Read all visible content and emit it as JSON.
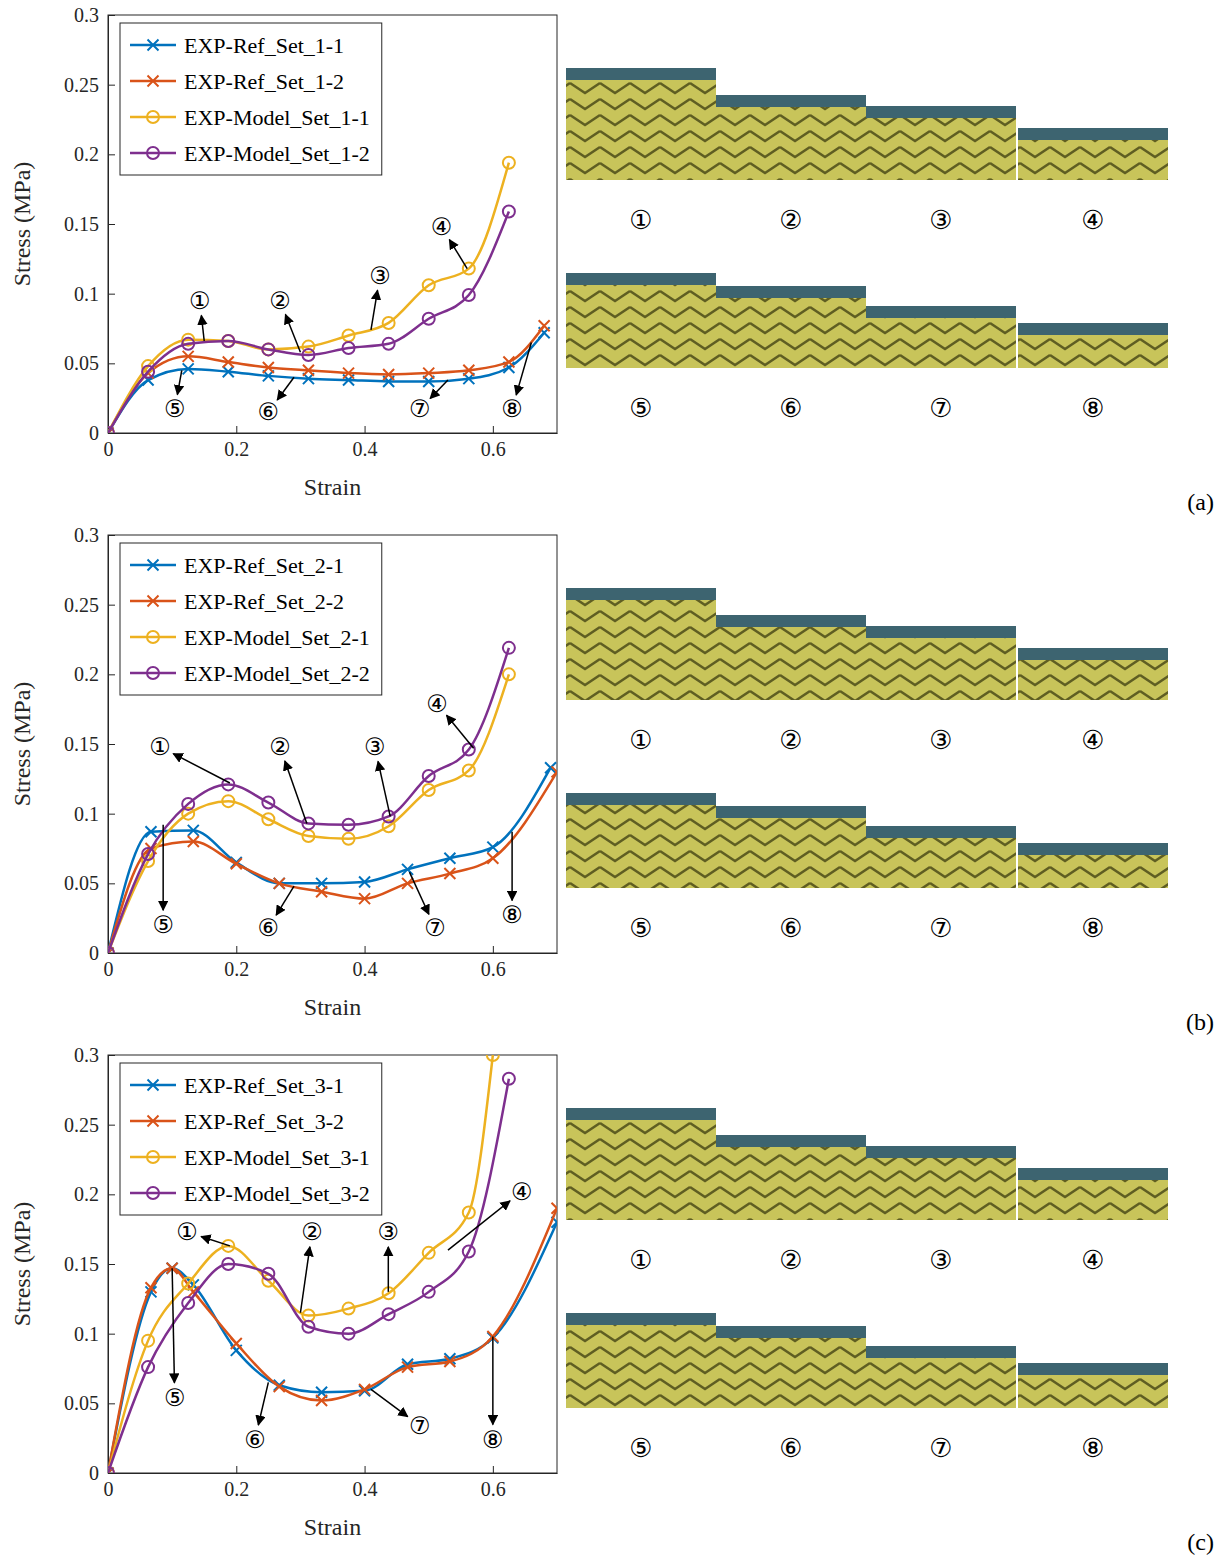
{
  "chart_data": [
    {
      "type": "line",
      "label": "(a)",
      "x_label": "Strain",
      "y_label": "Stress (MPa)",
      "xlim": [
        0,
        0.7
      ],
      "xticks": [
        0,
        0.2,
        0.4,
        0.6
      ],
      "ylim": [
        0,
        0.3
      ],
      "yticks": [
        0,
        0.05,
        0.1,
        0.15,
        0.2,
        0.25,
        0.3
      ],
      "legend": "upper left",
      "series": [
        {
          "name": "EXP-Ref_Set_1-1",
          "color": "#0072bd",
          "marker": "x",
          "x": [
            0,
            0.0625,
            0.125,
            0.1875,
            0.25,
            0.3125,
            0.375,
            0.4375,
            0.5,
            0.5625,
            0.625,
            0.68
          ],
          "values": [
            0,
            0.038,
            0.046,
            0.044,
            0.041,
            0.039,
            0.038,
            0.037,
            0.037,
            0.039,
            0.047,
            0.072
          ]
        },
        {
          "name": "EXP-Ref_Set_1-2",
          "color": "#d95319",
          "marker": "x",
          "x": [
            0,
            0.0625,
            0.125,
            0.1875,
            0.25,
            0.3125,
            0.375,
            0.4375,
            0.5,
            0.5625,
            0.625,
            0.68
          ],
          "values": [
            0,
            0.043,
            0.055,
            0.051,
            0.047,
            0.045,
            0.043,
            0.042,
            0.043,
            0.045,
            0.051,
            0.077
          ]
        },
        {
          "name": "EXP-Model_Set_1-1",
          "color": "#edb120",
          "marker": "circle",
          "x": [
            0,
            0.0625,
            0.125,
            0.1875,
            0.25,
            0.3125,
            0.375,
            0.4375,
            0.5,
            0.5625,
            0.625
          ],
          "values": [
            0,
            0.048,
            0.067,
            0.066,
            0.06,
            0.062,
            0.07,
            0.079,
            0.106,
            0.118,
            0.194
          ]
        },
        {
          "name": "EXP-Model_Set_1-2",
          "color": "#7e2f8e",
          "marker": "circle",
          "x": [
            0,
            0.0625,
            0.125,
            0.1875,
            0.25,
            0.3125,
            0.375,
            0.4375,
            0.5,
            0.5625,
            0.625
          ],
          "values": [
            0,
            0.044,
            0.064,
            0.066,
            0.06,
            0.056,
            0.061,
            0.064,
            0.082,
            0.099,
            0.159
          ]
        }
      ],
      "annotations": [
        {
          "text": "①",
          "x": 0.15,
          "y": 0.066,
          "text_x": 0.143,
          "text_y": 0.095
        },
        {
          "text": "②",
          "x": 0.3,
          "y": 0.058,
          "text_x": 0.268,
          "text_y": 0.095
        },
        {
          "text": "③",
          "x": 0.41,
          "y": 0.074,
          "text_x": 0.424,
          "text_y": 0.113
        },
        {
          "text": "④",
          "x": 0.56,
          "y": 0.118,
          "text_x": 0.52,
          "text_y": 0.148
        },
        {
          "text": "⑤",
          "x": 0.115,
          "y": 0.045,
          "text_x": 0.104,
          "text_y": 0.017
        },
        {
          "text": "⑥",
          "x": 0.29,
          "y": 0.04,
          "text_x": 0.25,
          "text_y": 0.015
        },
        {
          "text": "⑦",
          "x": 0.53,
          "y": 0.038,
          "text_x": 0.486,
          "text_y": 0.017
        },
        {
          "text": "⑧",
          "x": 0.66,
          "y": 0.065,
          "text_x": 0.63,
          "text_y": 0.017
        }
      ],
      "photo_captions": [
        [
          "①",
          "②",
          "③",
          "④"
        ],
        [
          "⑤",
          "⑥",
          "⑦",
          "⑧"
        ]
      ]
    },
    {
      "type": "line",
      "label": "(b)",
      "x_label": "Strain",
      "y_label": "Stress (MPa)",
      "xlim": [
        0,
        0.7
      ],
      "xticks": [
        0,
        0.2,
        0.4,
        0.6
      ],
      "ylim": [
        0,
        0.3
      ],
      "yticks": [
        0,
        0.05,
        0.1,
        0.15,
        0.2,
        0.25,
        0.3
      ],
      "legend": "upper left",
      "series": [
        {
          "name": "EXP-Ref_Set_2-1",
          "color": "#0072bd",
          "marker": "x",
          "x": [
            0,
            0.067,
            0.133,
            0.2,
            0.267,
            0.333,
            0.4,
            0.467,
            0.533,
            0.6,
            0.69
          ],
          "values": [
            0,
            0.087,
            0.088,
            0.065,
            0.05,
            0.05,
            0.051,
            0.06,
            0.068,
            0.076,
            0.133
          ]
        },
        {
          "name": "EXP-Ref_Set_2-2",
          "color": "#d95319",
          "marker": "x",
          "x": [
            0,
            0.067,
            0.133,
            0.2,
            0.267,
            0.333,
            0.4,
            0.467,
            0.533,
            0.6,
            0.7
          ],
          "values": [
            0,
            0.075,
            0.08,
            0.064,
            0.05,
            0.044,
            0.039,
            0.05,
            0.057,
            0.068,
            0.13
          ]
        },
        {
          "name": "EXP-Model_Set_2-1",
          "color": "#edb120",
          "marker": "circle",
          "x": [
            0,
            0.0625,
            0.125,
            0.1875,
            0.25,
            0.3125,
            0.375,
            0.4375,
            0.5,
            0.5625,
            0.625
          ],
          "values": [
            0,
            0.066,
            0.1,
            0.109,
            0.096,
            0.084,
            0.082,
            0.091,
            0.117,
            0.131,
            0.2
          ]
        },
        {
          "name": "EXP-Model_Set_2-2",
          "color": "#7e2f8e",
          "marker": "circle",
          "x": [
            0,
            0.0625,
            0.125,
            0.1875,
            0.25,
            0.3125,
            0.375,
            0.4375,
            0.5,
            0.5625,
            0.625
          ],
          "values": [
            0,
            0.071,
            0.107,
            0.121,
            0.108,
            0.093,
            0.092,
            0.098,
            0.127,
            0.146,
            0.219
          ]
        }
      ],
      "annotations": [
        {
          "text": "①",
          "x": 0.19,
          "y": 0.122,
          "text_x": 0.081,
          "text_y": 0.148
        },
        {
          "text": "②",
          "x": 0.31,
          "y": 0.093,
          "text_x": 0.268,
          "text_y": 0.148
        },
        {
          "text": "③",
          "x": 0.44,
          "y": 0.098,
          "text_x": 0.416,
          "text_y": 0.148
        },
        {
          "text": "④",
          "x": 0.57,
          "y": 0.147,
          "text_x": 0.513,
          "text_y": 0.179
        },
        {
          "text": "⑤",
          "x": 0.086,
          "y": 0.092,
          "text_x": 0.086,
          "text_y": 0.02
        },
        {
          "text": "⑥",
          "x": 0.29,
          "y": 0.048,
          "text_x": 0.25,
          "text_y": 0.018
        },
        {
          "text": "⑦",
          "x": 0.47,
          "y": 0.058,
          "text_x": 0.51,
          "text_y": 0.018
        },
        {
          "text": "⑧",
          "x": 0.63,
          "y": 0.087,
          "text_x": 0.63,
          "text_y": 0.027
        }
      ],
      "photo_captions": [
        [
          "①",
          "②",
          "③",
          "④"
        ],
        [
          "⑤",
          "⑥",
          "⑦",
          "⑧"
        ]
      ]
    },
    {
      "type": "line",
      "label": "(c)",
      "x_label": "Strain",
      "y_label": "Stress (MPa)",
      "xlim": [
        0,
        0.7
      ],
      "xticks": [
        0,
        0.2,
        0.4,
        0.6
      ],
      "ylim": [
        0,
        0.3
      ],
      "yticks": [
        0,
        0.05,
        0.1,
        0.15,
        0.2,
        0.25,
        0.3
      ],
      "legend": "upper left",
      "series": [
        {
          "name": "EXP-Ref_Set_3-1",
          "color": "#0072bd",
          "marker": "x",
          "x": [
            0,
            0.067,
            0.1,
            0.133,
            0.2,
            0.267,
            0.333,
            0.4,
            0.467,
            0.533,
            0.6,
            0.7
          ],
          "values": [
            0,
            0.13,
            0.147,
            0.135,
            0.088,
            0.063,
            0.058,
            0.059,
            0.078,
            0.082,
            0.097,
            0.18
          ]
        },
        {
          "name": "EXP-Ref_Set_3-2",
          "color": "#d95319",
          "marker": "x",
          "x": [
            0,
            0.067,
            0.1,
            0.133,
            0.2,
            0.267,
            0.333,
            0.4,
            0.467,
            0.533,
            0.6,
            0.7
          ],
          "values": [
            0,
            0.133,
            0.147,
            0.13,
            0.093,
            0.062,
            0.052,
            0.06,
            0.076,
            0.08,
            0.098,
            0.19
          ]
        },
        {
          "name": "EXP-Model_Set_3-1",
          "color": "#edb120",
          "marker": "circle",
          "x": [
            0,
            0.0625,
            0.125,
            0.1875,
            0.25,
            0.3125,
            0.375,
            0.4375,
            0.5,
            0.5625,
            0.6
          ],
          "values": [
            0,
            0.095,
            0.136,
            0.163,
            0.138,
            0.113,
            0.118,
            0.129,
            0.158,
            0.187,
            0.3
          ]
        },
        {
          "name": "EXP-Model_Set_3-2",
          "color": "#7e2f8e",
          "marker": "circle",
          "x": [
            0,
            0.0625,
            0.125,
            0.1875,
            0.25,
            0.3125,
            0.375,
            0.4375,
            0.5,
            0.5625,
            0.625
          ],
          "values": [
            0,
            0.076,
            0.122,
            0.15,
            0.143,
            0.105,
            0.1,
            0.114,
            0.13,
            0.159,
            0.283
          ]
        }
      ],
      "annotations": [
        {
          "text": "①",
          "x": 0.19,
          "y": 0.163,
          "text_x": 0.123,
          "text_y": 0.173
        },
        {
          "text": "②",
          "x": 0.3,
          "y": 0.115,
          "text_x": 0.318,
          "text_y": 0.173
        },
        {
          "text": "③",
          "x": 0.437,
          "y": 0.13,
          "text_x": 0.437,
          "text_y": 0.173
        },
        {
          "text": "④",
          "x": 0.53,
          "y": 0.16,
          "text_x": 0.645,
          "text_y": 0.202
        },
        {
          "text": "⑤",
          "x": 0.1,
          "y": 0.147,
          "text_x": 0.104,
          "text_y": 0.054
        },
        {
          "text": "⑥",
          "x": 0.25,
          "y": 0.065,
          "text_x": 0.229,
          "text_y": 0.024
        },
        {
          "text": "⑦",
          "x": 0.41,
          "y": 0.06,
          "text_x": 0.486,
          "text_y": 0.034
        },
        {
          "text": "⑧",
          "x": 0.6,
          "y": 0.098,
          "text_x": 0.6,
          "text_y": 0.024
        }
      ],
      "photo_captions": [
        [
          "①",
          "②",
          "③",
          "④"
        ],
        [
          "⑤",
          "⑥",
          "⑦",
          "⑧"
        ]
      ]
    }
  ]
}
